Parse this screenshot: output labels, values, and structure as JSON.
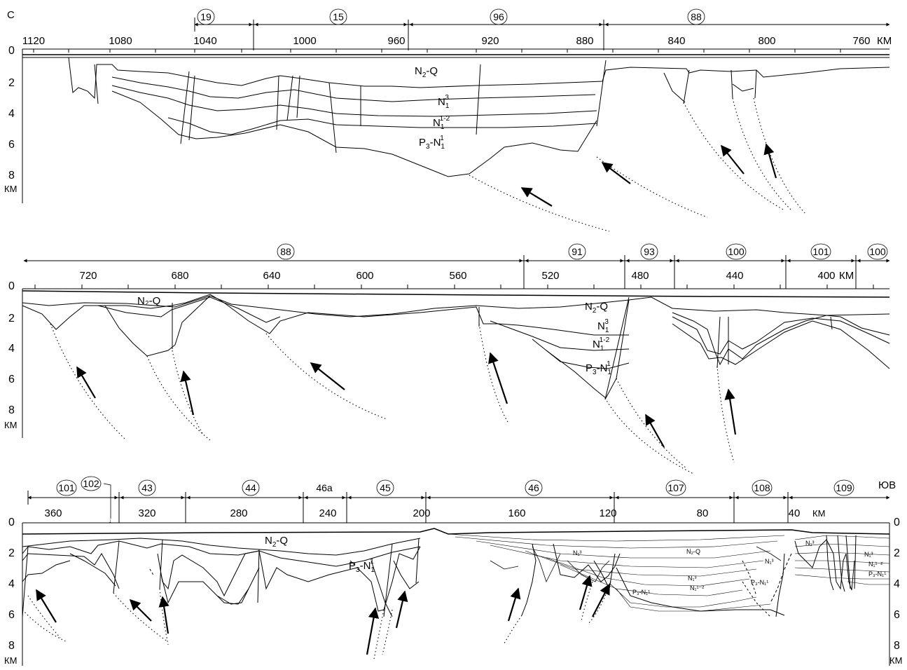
{
  "figure": {
    "corner_left": "С",
    "corner_right": "ЮВ",
    "depth_unit": "КМ",
    "distance_unit": "КМ",
    "arrow_glyph": "↓"
  },
  "panels": [
    {
      "id": "panel-1",
      "distance_labels": [
        "1120",
        "1080",
        "1040",
        "1000",
        "960",
        "920",
        "880",
        "840",
        "800",
        "760"
      ],
      "distance_unit_shown": true,
      "depth_labels_left": [
        "0",
        "2",
        "4",
        "6",
        "8"
      ],
      "depth_labels_right": [],
      "segments": [
        "19",
        "15",
        "96",
        "88"
      ],
      "layers": [
        {
          "base": "N",
          "sub": "2",
          "sup": "",
          "suffix": "-Q"
        },
        {
          "base": "N",
          "sub": "1",
          "sup": "3",
          "suffix": ""
        },
        {
          "base": "N",
          "sub": "1",
          "sup": "1-2",
          "suffix": ""
        },
        {
          "base": "P",
          "sub": "3",
          "sup": "",
          "suffix": "-N",
          "sub2": "1",
          "sup2": "1"
        }
      ]
    },
    {
      "id": "panel-2",
      "distance_labels": [
        "720",
        "680",
        "640",
        "600",
        "560",
        "520",
        "480",
        "440",
        "400"
      ],
      "distance_unit_shown": true,
      "depth_labels_left": [
        "0",
        "2",
        "4",
        "6",
        "8"
      ],
      "depth_labels_right": [],
      "segments": [
        "88",
        "91",
        "93",
        "100",
        "101",
        "100"
      ],
      "layers": [
        {
          "base": "N",
          "sub": "2",
          "sup": "",
          "suffix": "-Q"
        },
        {
          "base": "N",
          "sub": "1",
          "sup": "3",
          "suffix": ""
        },
        {
          "base": "N",
          "sub": "1",
          "sup": "1-2",
          "suffix": ""
        },
        {
          "base": "P",
          "sub": "3",
          "sup": "",
          "suffix": "-N",
          "sub2": "1",
          "sup2": "1"
        }
      ],
      "small_layer_label": "N₂-Q"
    },
    {
      "id": "panel-3",
      "distance_labels": [
        "360",
        "320",
        "280",
        "240",
        "200",
        "160",
        "120",
        "80",
        "40"
      ],
      "distance_unit_shown": true,
      "depth_labels_left": [
        "0",
        "2",
        "4",
        "6",
        "8"
      ],
      "depth_labels_right": [
        "0",
        "2",
        "4",
        "6",
        "8"
      ],
      "segments": [
        "101",
        "102",
        "43",
        "44",
        "46а",
        "45",
        "46",
        "107",
        "108",
        "109"
      ],
      "layers": [
        {
          "base": "N",
          "sub": "2",
          "sup": "",
          "suffix": "-Q"
        },
        {
          "base": "P",
          "sub": "3",
          "sup": "",
          "suffix": "-N",
          "sub2": "1",
          "sup2": "1"
        }
      ],
      "small_labels": [
        "N₁³",
        "N₂-Q",
        "N₁³",
        "N₁³",
        "N₁¹⁻²",
        "P₃-N₁¹",
        "P₃-N₁¹",
        "N₁³",
        "N₁³",
        "N₁¹⁻²",
        "P₃-N₁¹"
      ]
    }
  ]
}
